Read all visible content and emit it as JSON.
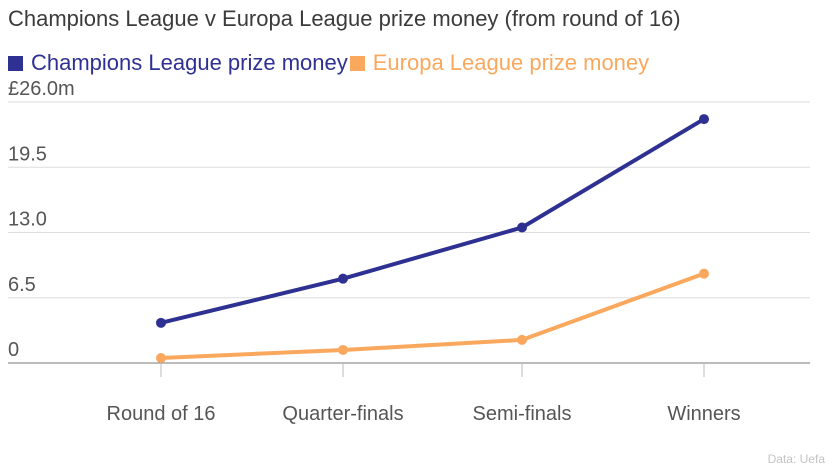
{
  "chart_data": {
    "type": "line",
    "title": "Champions League v Europa League prize money (from round of 16)",
    "categories": [
      "Round of 16",
      "Quarter-finals",
      "Semi-finals",
      "Winners"
    ],
    "series": [
      {
        "name": "Champions League prize money",
        "color": "#2e3192",
        "values": [
          4.0,
          8.4,
          13.5,
          24.3
        ]
      },
      {
        "name": "Europa League prize money",
        "color": "#faa85e",
        "values": [
          0.5,
          1.3,
          2.3,
          8.9
        ]
      }
    ],
    "yticks": [
      "£26.0m",
      "19.5",
      "13.0",
      "6.5",
      "0"
    ],
    "ylim": [
      0,
      26
    ],
    "grid": true,
    "legend_position": "top-left",
    "source": "Data: Uefa"
  }
}
